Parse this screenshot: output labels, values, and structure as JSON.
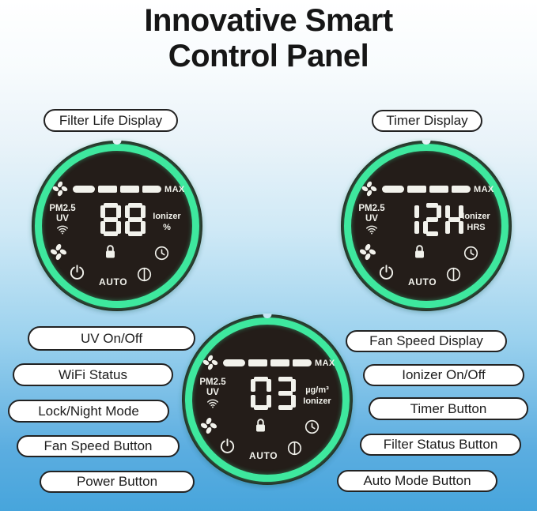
{
  "header": {
    "title_line1": "Innovative Smart",
    "title_line2": "Control Panel"
  },
  "callouts": {
    "filter_life": "Filter Life Display",
    "timer": "Timer Display",
    "left": [
      "UV On/Off",
      "WiFi Status",
      "Lock/Night Mode",
      "Fan Speed Button",
      "Power Button"
    ],
    "right": [
      "Fan Speed Display",
      "Ionizer On/Off",
      "Timer Button",
      "Filter Status Button",
      "Auto Mode Button"
    ]
  },
  "panels": [
    {
      "name": "filter-life-display",
      "fan_speed": {
        "segments": 4,
        "filled": 4,
        "max_label": "MAX"
      },
      "left_labels": {
        "pm": "PM2.5",
        "uv": "UV"
      },
      "display": {
        "value": "88",
        "unit_top": "Ionizer",
        "unit_bottom": "%"
      },
      "auto_label": "AUTO"
    },
    {
      "name": "timer-display",
      "fan_speed": {
        "segments": 4,
        "filled": 4,
        "max_label": "MAX"
      },
      "left_labels": {
        "pm": "PM2.5",
        "uv": "UV"
      },
      "display": {
        "value": "12H",
        "unit_top": "Ionizer",
        "unit_bottom": "HRS"
      },
      "auto_label": "AUTO"
    },
    {
      "name": "air-quality-display",
      "fan_speed": {
        "segments": 4,
        "filled": 4,
        "max_label": "MAX"
      },
      "left_labels": {
        "pm": "PM2.5",
        "uv": "UV"
      },
      "display": {
        "value": "03",
        "unit_top": "µg/m³",
        "unit_bottom": "Ionizer"
      },
      "auto_label": "AUTO"
    }
  ],
  "icons": {
    "fan": "four-blade-pinwheel",
    "wifi": "wifi-arcs",
    "lock": "padlock",
    "clock": "timer-clock",
    "power": "power-symbol",
    "ionizer": "circle-with-vertical-bar"
  },
  "colors": {
    "ring_green": "#3ee89e",
    "panel_black": "#241d19",
    "display_white": "#f2f2ec",
    "background_bottom_blue": "#47a5dc",
    "text_black": "#161616"
  }
}
